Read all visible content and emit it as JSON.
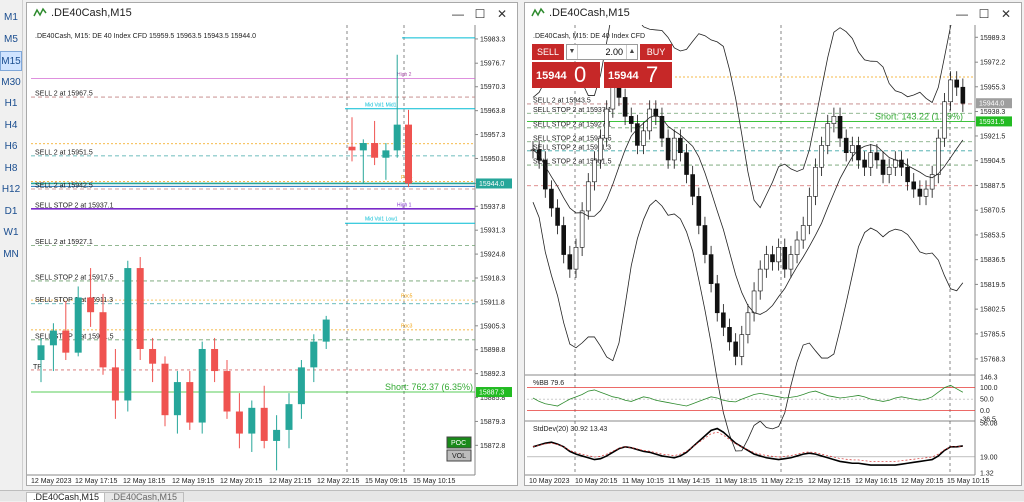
{
  "timeframes": [
    "M1",
    "M5",
    "M15",
    "M30",
    "H1",
    "H4",
    "H6",
    "H8",
    "H12",
    "D1",
    "W1",
    "MN"
  ],
  "active_timeframe": "M15",
  "left_window": {
    "title": ".DE40Cash,M15",
    "header_text": ".DE40Cash, M15:  DE 40 Index CFD  15959.5 15963.5 15943.5 15944.0",
    "price_axis": [
      "15983.3",
      "15976.7",
      "15970.3",
      "15963.8",
      "15957.3",
      "15950.8",
      "15944.0",
      "15937.8",
      "15931.3",
      "15924.8",
      "15918.3",
      "15911.8",
      "15905.3",
      "15898.8",
      "15892.3",
      "15885.8",
      "15879.3",
      "15872.8"
    ],
    "current_price_tag": "15944.0",
    "short_price_tag": "15887.3",
    "time_axis": [
      "12 May 2023",
      "12 May 17:15",
      "12 May 18:15",
      "12 May 19:15",
      "12 May 20:15",
      "12 May 21:15",
      "12 May 22:15",
      "15 May 09:15",
      "15 May 10:15"
    ],
    "order_labels": [
      "SELL 2 at 15967.5",
      "SELL 2 at 15951.5",
      "SELL 2 at 15942.5",
      "SELL STOP 2 at 15937.1",
      "SELL 2 at 15927.1",
      "SELL STOP 2 at 15917.5",
      "SELL STOP 2 at 15911.3",
      "SELL STOP 2 at 15901.5"
    ],
    "short_text": "Short: 762.37  (6.35%)",
    "tp_label": "TP",
    "poc_labels": [
      "High 2",
      "Mid Vol1 Mid1",
      "Poc4",
      "High 1",
      "Mid Vol1 Low1",
      "Poc5",
      "Poc3"
    ],
    "poc_button": "POC",
    "vol_button": "VOL",
    "chart_data": {
      "type": "candlestick",
      "ylim": [
        15868.0,
        15986.0
      ],
      "candles": [
        {
          "o": 15896,
          "h": 15902,
          "l": 15890,
          "c": 15900
        },
        {
          "o": 15900,
          "h": 15906,
          "l": 15893,
          "c": 15904
        },
        {
          "o": 15904,
          "h": 15912,
          "l": 15896,
          "c": 15898
        },
        {
          "o": 15898,
          "h": 15916,
          "l": 15897,
          "c": 15913
        },
        {
          "o": 15913,
          "h": 15921,
          "l": 15905,
          "c": 15909
        },
        {
          "o": 15909,
          "h": 15914,
          "l": 15892,
          "c": 15894
        },
        {
          "o": 15894,
          "h": 15899,
          "l": 15880,
          "c": 15885
        },
        {
          "o": 15885,
          "h": 15923,
          "l": 15882,
          "c": 15921
        },
        {
          "o": 15921,
          "h": 15924,
          "l": 15896,
          "c": 15899
        },
        {
          "o": 15899,
          "h": 15902,
          "l": 15890,
          "c": 15895
        },
        {
          "o": 15895,
          "h": 15897,
          "l": 15878,
          "c": 15881
        },
        {
          "o": 15881,
          "h": 15893,
          "l": 15876,
          "c": 15890
        },
        {
          "o": 15890,
          "h": 15893,
          "l": 15877,
          "c": 15879
        },
        {
          "o": 15879,
          "h": 15901,
          "l": 15876,
          "c": 15899
        },
        {
          "o": 15899,
          "h": 15902,
          "l": 15890,
          "c": 15893
        },
        {
          "o": 15893,
          "h": 15896,
          "l": 15880,
          "c": 15882
        },
        {
          "o": 15882,
          "h": 15887,
          "l": 15872,
          "c": 15876
        },
        {
          "o": 15876,
          "h": 15885,
          "l": 15871,
          "c": 15883
        },
        {
          "o": 15883,
          "h": 15889,
          "l": 15872,
          "c": 15874
        },
        {
          "o": 15874,
          "h": 15881,
          "l": 15866,
          "c": 15877
        },
        {
          "o": 15877,
          "h": 15887,
          "l": 15872,
          "c": 15884
        },
        {
          "o": 15884,
          "h": 15896,
          "l": 15880,
          "c": 15894
        },
        {
          "o": 15894,
          "h": 15903,
          "l": 15890,
          "c": 15901
        },
        {
          "o": 15901,
          "h": 15908,
          "l": 15899,
          "c": 15907
        },
        {
          "o": 15954,
          "h": 15962,
          "l": 15950,
          "c": 15953
        },
        {
          "o": 15953,
          "h": 15956,
          "l": 15944,
          "c": 15955
        },
        {
          "o": 15955,
          "h": 15961,
          "l": 15949,
          "c": 15951
        },
        {
          "o": 15951,
          "h": 15955,
          "l": 15945,
          "c": 15953
        },
        {
          "o": 15953,
          "h": 15979,
          "l": 15951,
          "c": 15960
        },
        {
          "o": 15960,
          "h": 15964,
          "l": 15943,
          "c": 15944
        }
      ]
    }
  },
  "right_window": {
    "title": ".DE40Cash,M15",
    "header_text": ".DE40Cash, M15:  DE 40 Index CFD",
    "sell_label": "SELL",
    "buy_label": "BUY",
    "lot_value": "2.00",
    "bid_small": "15944",
    "bid_big": "0",
    "ask_small": "15944",
    "ask_big": "7",
    "price_axis": [
      "15989.3",
      "15972.2",
      "15955.3",
      "15938.3",
      "15921.5",
      "15904.5",
      "15887.5",
      "15870.5",
      "15853.5",
      "15836.5",
      "15819.5",
      "15802.5",
      "15785.5",
      "15768.3"
    ],
    "current_price_tag": "15944.0",
    "short_price_tag": "15931.5",
    "short_text": "Short: 143.22  (1.19%)",
    "order_labels": [
      "SELL 2 at 15943.5",
      "SELL STOP 2 at 15937.1",
      "SELL STOP 2 at 15927.1",
      "SELL STOP 2 at 15917.5",
      "SELL STOP 2 at 15911.3",
      "SELL STOP 2 at 15901.5"
    ],
    "time_axis": [
      "10 May 2023",
      "10 May 20:15",
      "11 May 10:15",
      "11 May 14:15",
      "11 May 18:15",
      "11 May 22:15",
      "12 May 12:15",
      "12 May 16:15",
      "12 May 20:15",
      "15 May 10:15"
    ],
    "bb_label": "%BB 79.6",
    "bb_axis": [
      "146.3",
      "100.0",
      "50.0",
      "0.0",
      "-36.5"
    ],
    "std_label": "StdDev(20) 30.92 13.43",
    "std_axis": [
      "56.08",
      "19.00",
      "1.32"
    ],
    "chart_data": {
      "type": "candlestick",
      "ylim": [
        15760,
        15995
      ],
      "close_series": [
        15912,
        15905,
        15885,
        15872,
        15860,
        15840,
        15830,
        15845,
        15870,
        15890,
        15905,
        15920,
        15940,
        15955,
        15948,
        15935,
        15930,
        15915,
        15925,
        15940,
        15935,
        15920,
        15905,
        15920,
        15910,
        15895,
        15880,
        15860,
        15840,
        15820,
        15800,
        15790,
        15780,
        15770,
        15785,
        15800,
        15815,
        15830,
        15840,
        15835,
        15845,
        15830,
        15840,
        15850,
        15860,
        15880,
        15900,
        15915,
        15930,
        15935,
        15920,
        15910,
        15915,
        15905,
        15900,
        15910,
        15905,
        15895,
        15900,
        15905,
        15900,
        15890,
        15885,
        15880,
        15885,
        15895,
        15920,
        15945,
        15960,
        15955,
        15944
      ],
      "bb_series": [
        55,
        40,
        30,
        25,
        20,
        35,
        50,
        60,
        70,
        85,
        90,
        80,
        70,
        60,
        55,
        45,
        40,
        50,
        60,
        55,
        45,
        40,
        35,
        30,
        25,
        20,
        30,
        40,
        50,
        60,
        55,
        45,
        40,
        38,
        50,
        60,
        70,
        75,
        70,
        65,
        60,
        55,
        58,
        62,
        70,
        80,
        85,
        75,
        65,
        60,
        55,
        58,
        62,
        66,
        60,
        50,
        45,
        40,
        45,
        55,
        60,
        55,
        50,
        45,
        50,
        60,
        80,
        100,
        110,
        95,
        80
      ],
      "std_series": [
        30,
        32,
        34,
        35,
        33,
        30,
        25,
        22,
        20,
        18,
        16,
        17,
        20,
        24,
        28,
        30,
        29,
        27,
        25,
        24,
        22,
        20,
        19,
        18,
        20,
        24,
        30,
        36,
        42,
        48,
        50,
        46,
        40,
        34,
        30,
        26,
        22,
        20,
        18,
        17,
        16,
        17,
        18,
        20,
        22,
        23,
        22,
        20,
        18,
        16,
        14,
        13,
        12,
        12,
        11,
        10,
        10,
        10,
        10,
        10,
        11,
        12,
        13,
        14,
        15,
        16,
        20,
        26,
        30,
        30,
        31
      ]
    }
  },
  "bottom_tabs": [
    ".DE40Cash,M15",
    ".DE40Cash,M15"
  ],
  "colors": {
    "bull": "#26a69a",
    "bear": "#ef5350",
    "current": "#26a69a",
    "short_line": "#22bb22",
    "magenta": "#d46bd4",
    "purple": "#6a1bb7",
    "cyan": "#00bcd4",
    "orange": "#f2a20c",
    "sell_red": "#c62828"
  }
}
